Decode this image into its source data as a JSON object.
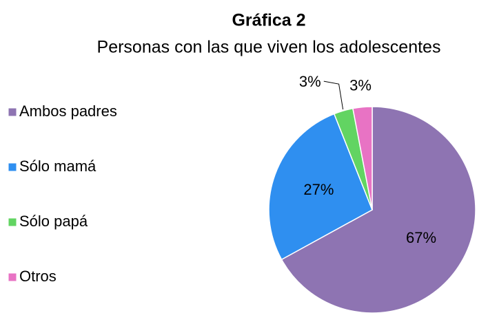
{
  "chart_data": {
    "type": "pie",
    "title": "Gráfica 2",
    "subtitle": "Personas con las que viven los adolescentes",
    "categories": [
      "Ambos padres",
      "Sólo mamá",
      "Sólo papá",
      "Otros"
    ],
    "values": [
      67,
      27,
      3,
      3
    ],
    "value_labels": [
      "67%",
      "27%",
      "3%",
      "3%"
    ],
    "colors": [
      "#8e74b2",
      "#2f8ff0",
      "#62d462",
      "#e873c4"
    ],
    "legend": "left"
  }
}
